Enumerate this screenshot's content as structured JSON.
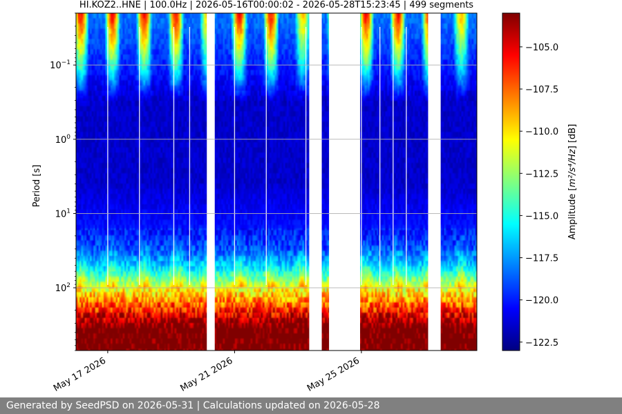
{
  "chart_data": {
    "type": "heatmap",
    "title": "HI.KOZ2..HNE | 100.0Hz | 2026-05-16T00:00:02 - 2026-05-28T15:23:45 | 499 segments",
    "ylabel": "Period [s]",
    "yscale": "log",
    "yaxis_inverted": true,
    "ylim": [
      0.02,
      700
    ],
    "y_tick_values": [
      0.1,
      1,
      10,
      100
    ],
    "y_tick_labels": [
      {
        "base": "10",
        "exp": "−1"
      },
      {
        "base": "10",
        "exp": "0"
      },
      {
        "base": "10",
        "exp": "1"
      },
      {
        "base": "10",
        "exp": "2"
      }
    ],
    "xlim": [
      "2026-05-16",
      "2026-05-28T15:23:45"
    ],
    "x_ticks": [
      {
        "date": "2026-05-17",
        "label": "May 17 2026"
      },
      {
        "date": "2026-05-21",
        "label": "May 21 2026"
      },
      {
        "date": "2026-05-25",
        "label": "May 25 2026"
      }
    ],
    "grid": true,
    "colorbar": {
      "label_pre": "Amplitude [",
      "label_math": "m²/s⁴/Hz",
      "label_post": "] [dB]",
      "colormap": "jet",
      "range": [
        -123,
        -103
      ],
      "ticks": [
        -105.0,
        -107.5,
        -110.0,
        -112.5,
        -115.0,
        -117.5,
        -120.0,
        -122.5
      ],
      "tick_labels": [
        "−105.0",
        "−107.5",
        "−110.0",
        "−112.5",
        "−115.0",
        "−117.5",
        "−120.0",
        "−122.5"
      ]
    },
    "gaps": [
      [
        "2026-05-20T03:00",
        "2026-05-20T09:00"
      ],
      [
        "2026-05-23T08:30",
        "2026-05-23T18:00"
      ],
      [
        "2026-05-23T23:30",
        "2026-05-24T23:00"
      ],
      [
        "2026-05-27T02:30",
        "2026-05-27T12:00"
      ]
    ],
    "data_breaks": [
      "2026-05-17",
      "2026-05-18",
      "2026-05-19T02:00",
      "2026-05-19T14:00",
      "2026-05-21",
      "2026-05-22",
      "2026-05-23T06:00",
      "2026-05-25",
      "2026-05-25T14:00",
      "2026-05-26",
      "2026-05-26T10:00"
    ],
    "diurnal_peak_days": [
      "2026-05-16",
      "2026-05-17",
      "2026-05-18",
      "2026-05-19",
      "2026-05-21",
      "2026-05-22",
      "2026-05-25",
      "2026-05-26",
      "2026-05-27"
    ],
    "noise_pattern": {
      "short_period_day_peak_db": -104,
      "short_period_night_db": -118,
      "mid_period_db": -121.5,
      "long_period_db": -104
    }
  },
  "footer": {
    "text": "Generated by SeedPSD on 2026-05-31 | Calculations updated on 2026-05-28"
  }
}
